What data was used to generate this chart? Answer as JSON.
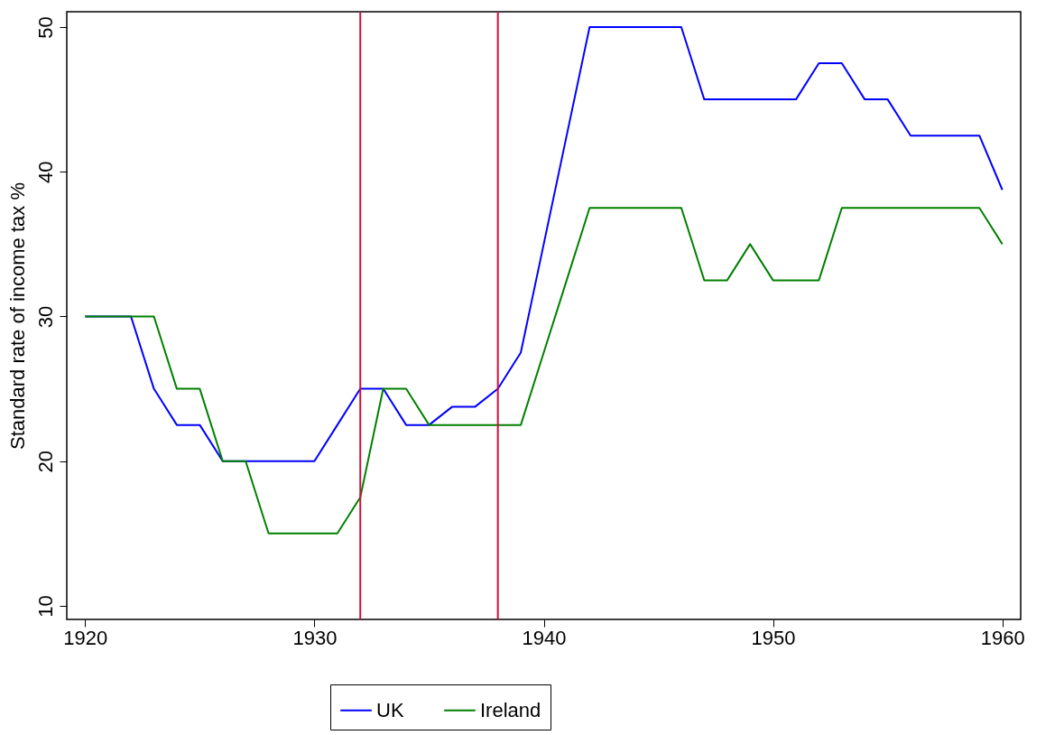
{
  "chart_data": {
    "type": "line",
    "ylabel": "Standard rate of income tax %",
    "x": [
      1920,
      1921,
      1922,
      1923,
      1924,
      1925,
      1926,
      1927,
      1928,
      1929,
      1930,
      1931,
      1932,
      1933,
      1934,
      1935,
      1936,
      1937,
      1938,
      1939,
      1940,
      1941,
      1942,
      1943,
      1944,
      1945,
      1946,
      1947,
      1948,
      1949,
      1950,
      1951,
      1952,
      1953,
      1954,
      1955,
      1956,
      1957,
      1958,
      1959,
      1960
    ],
    "series": [
      {
        "name": "UK",
        "color": "#0000ff",
        "values": [
          30,
          30,
          30,
          25,
          22.5,
          22.5,
          20,
          20,
          20,
          20,
          20,
          22.5,
          25,
          25,
          22.5,
          22.5,
          23.75,
          23.75,
          25,
          27.5,
          35,
          42.5,
          50,
          50,
          50,
          50,
          50,
          45,
          45,
          45,
          45,
          45,
          47.5,
          47.5,
          45,
          45,
          42.5,
          42.5,
          42.5,
          42.5,
          38.75
        ]
      },
      {
        "name": "Ireland",
        "color": "#008000",
        "values": [
          30,
          30,
          30,
          30,
          25,
          25,
          20,
          20,
          15,
          15,
          15,
          15,
          17.5,
          25,
          25,
          22.5,
          22.5,
          22.5,
          22.5,
          22.5,
          27.5,
          32.5,
          37.5,
          37.5,
          37.5,
          37.5,
          37.5,
          32.5,
          32.5,
          35,
          32.5,
          32.5,
          32.5,
          37.5,
          37.5,
          37.5,
          37.5,
          37.5,
          37.5,
          37.5,
          35
        ]
      }
    ],
    "xlim": [
      1919.2,
      1960.8
    ],
    "xticks": [
      1920,
      1930,
      1940,
      1950,
      1960
    ],
    "ylim": [
      9.06,
      51.06
    ],
    "yticks": [
      10,
      20,
      30,
      40,
      50
    ],
    "ref_lines": [
      {
        "axis": "x",
        "value": 1932,
        "color": "#d0103a"
      },
      {
        "axis": "x",
        "value": 1938,
        "color": "#d0103a"
      }
    ],
    "legend": "bottom",
    "grid": false,
    "marker": "none",
    "line_style": "solid"
  }
}
